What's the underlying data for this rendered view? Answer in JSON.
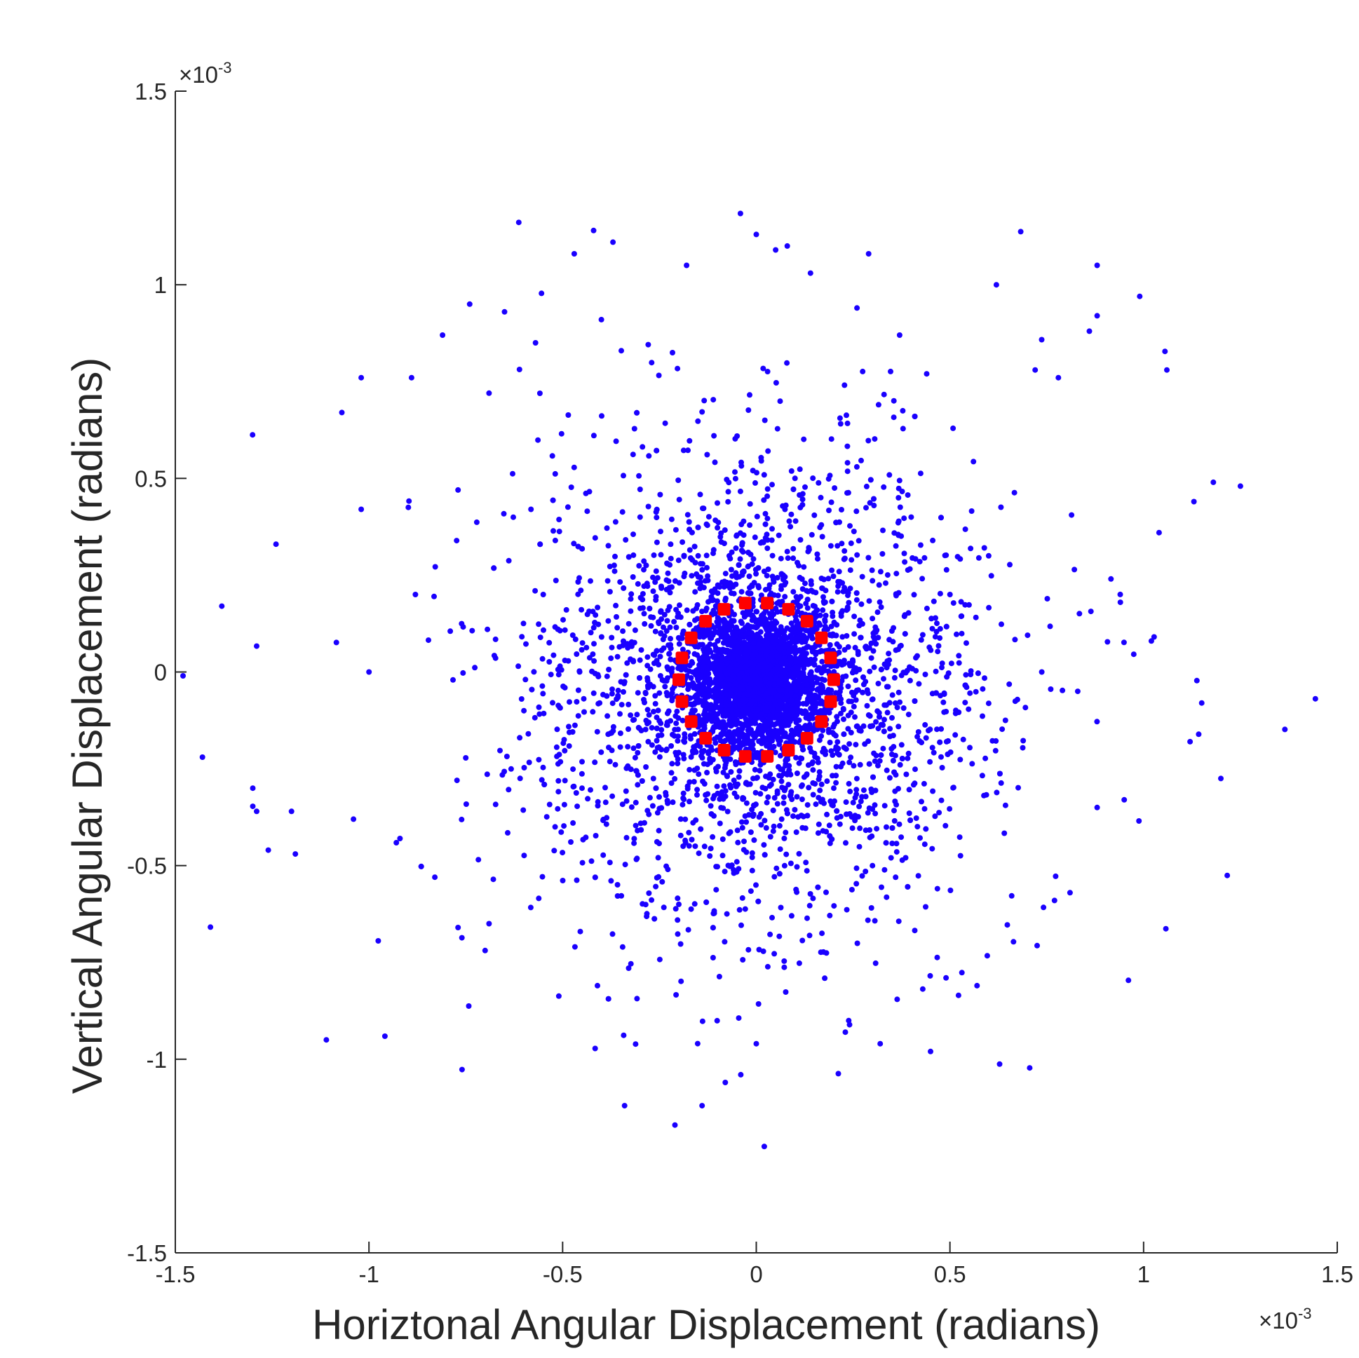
{
  "chart_data": {
    "type": "scatter",
    "title": "",
    "xlabel": "Horiztonal Angular Displacement (radians)",
    "ylabel": "Vertical Angular Displacement (radians)",
    "xlim": [
      -1.5,
      1.5
    ],
    "ylim": [
      -1.5,
      1.5
    ],
    "x_ticks": [
      "-1.5",
      "-1",
      "-0.5",
      "0",
      "0.5",
      "1",
      "1.5"
    ],
    "y_ticks": [
      "-1.5",
      "-1",
      "-0.5",
      "0",
      "0.5",
      "1",
      "1.5"
    ],
    "x_exponent": {
      "base": "×10",
      "power": "-3"
    },
    "y_exponent": {
      "base": "×10",
      "power": "-3"
    },
    "scale_factor": 0.001,
    "grid": false,
    "series": [
      {
        "marker": "dot",
        "color": "#1a00ff",
        "description": "dense cluster centered near (0, -0.02)",
        "points_sample": [
          [
            -0.42,
            1.14
          ],
          [
            -0.37,
            1.11
          ],
          [
            -0.47,
            1.08
          ],
          [
            0.0,
            1.13
          ],
          [
            0.05,
            1.09
          ],
          [
            0.08,
            1.1
          ],
          [
            0.29,
            1.08
          ],
          [
            -0.18,
            1.05
          ],
          [
            0.88,
            1.05
          ],
          [
            0.62,
            1.0
          ],
          [
            0.14,
            1.03
          ],
          [
            0.99,
            0.97
          ],
          [
            -0.74,
            0.95
          ],
          [
            -0.65,
            0.93
          ],
          [
            -0.4,
            0.91
          ],
          [
            0.26,
            0.94
          ],
          [
            0.88,
            0.92
          ],
          [
            0.86,
            0.88
          ],
          [
            -0.81,
            0.87
          ],
          [
            -0.57,
            0.85
          ],
          [
            0.37,
            0.87
          ],
          [
            0.44,
            0.77
          ],
          [
            -1.02,
            0.76
          ],
          [
            -0.89,
            0.76
          ],
          [
            -1.07,
            0.67
          ],
          [
            -0.69,
            0.72
          ],
          [
            1.06,
            0.78
          ],
          [
            0.72,
            0.78
          ],
          [
            0.78,
            0.76
          ],
          [
            1.18,
            0.49
          ],
          [
            1.25,
            0.48
          ],
          [
            1.13,
            0.44
          ],
          [
            1.04,
            0.36
          ],
          [
            -1.02,
            0.42
          ],
          [
            -0.77,
            0.47
          ],
          [
            -1.24,
            0.33
          ],
          [
            -1.38,
            0.17
          ],
          [
            -0.88,
            0.2
          ],
          [
            -1.0,
            0.0
          ],
          [
            -1.48,
            -0.01
          ],
          [
            -1.43,
            -0.22
          ],
          [
            -1.3,
            -0.3
          ],
          [
            -1.29,
            -0.36
          ],
          [
            -1.2,
            -0.36
          ],
          [
            -1.26,
            -0.46
          ],
          [
            -1.19,
            -0.47
          ],
          [
            -1.04,
            -0.38
          ],
          [
            -0.92,
            -0.43
          ],
          [
            -0.83,
            -0.53
          ],
          [
            -0.77,
            -0.66
          ],
          [
            -0.69,
            -0.65
          ],
          [
            -1.11,
            -0.95
          ],
          [
            -0.41,
            -0.81
          ],
          [
            -0.34,
            -1.12
          ],
          [
            -0.21,
            -1.17
          ],
          [
            -0.14,
            -1.12
          ],
          [
            -0.08,
            -1.06
          ],
          [
            -0.04,
            -1.04
          ],
          [
            0.0,
            -0.96
          ],
          [
            0.23,
            -0.93
          ],
          [
            0.32,
            -0.96
          ],
          [
            0.45,
            -0.98
          ],
          [
            0.49,
            -0.79
          ],
          [
            0.57,
            -0.81
          ],
          [
            0.77,
            -0.59
          ],
          [
            0.81,
            -0.57
          ],
          [
            0.88,
            -0.35
          ],
          [
            0.95,
            -0.33
          ],
          [
            1.12,
            -0.18
          ],
          [
            1.02,
            0.08
          ],
          [
            0.94,
            0.18
          ],
          [
            0.83,
            -0.05
          ],
          [
            0.6,
            0.3
          ],
          [
            0.5,
            0.2
          ],
          [
            -0.6,
            -0.1
          ],
          [
            -0.55,
            0.2
          ],
          [
            -0.45,
            -0.3
          ],
          [
            -0.3,
            0.4
          ],
          [
            0.3,
            -0.5
          ],
          [
            0.4,
            0.4
          ],
          [
            -0.2,
            -0.6
          ],
          [
            0.1,
            0.5
          ],
          [
            -0.15,
            0.3
          ],
          [
            0.2,
            -0.3
          ],
          [
            0.0,
            -0.02
          ],
          [
            0.05,
            0.05
          ],
          [
            -0.05,
            -0.08
          ],
          [
            0.1,
            -0.1
          ],
          [
            -0.1,
            0.08
          ],
          [
            0.15,
            0.02
          ]
        ]
      },
      {
        "marker": "dotted-circle",
        "color": "#ff0000",
        "description": "reference circle",
        "center": [
          0.0,
          -0.02
        ],
        "radius": 0.2
      }
    ]
  }
}
